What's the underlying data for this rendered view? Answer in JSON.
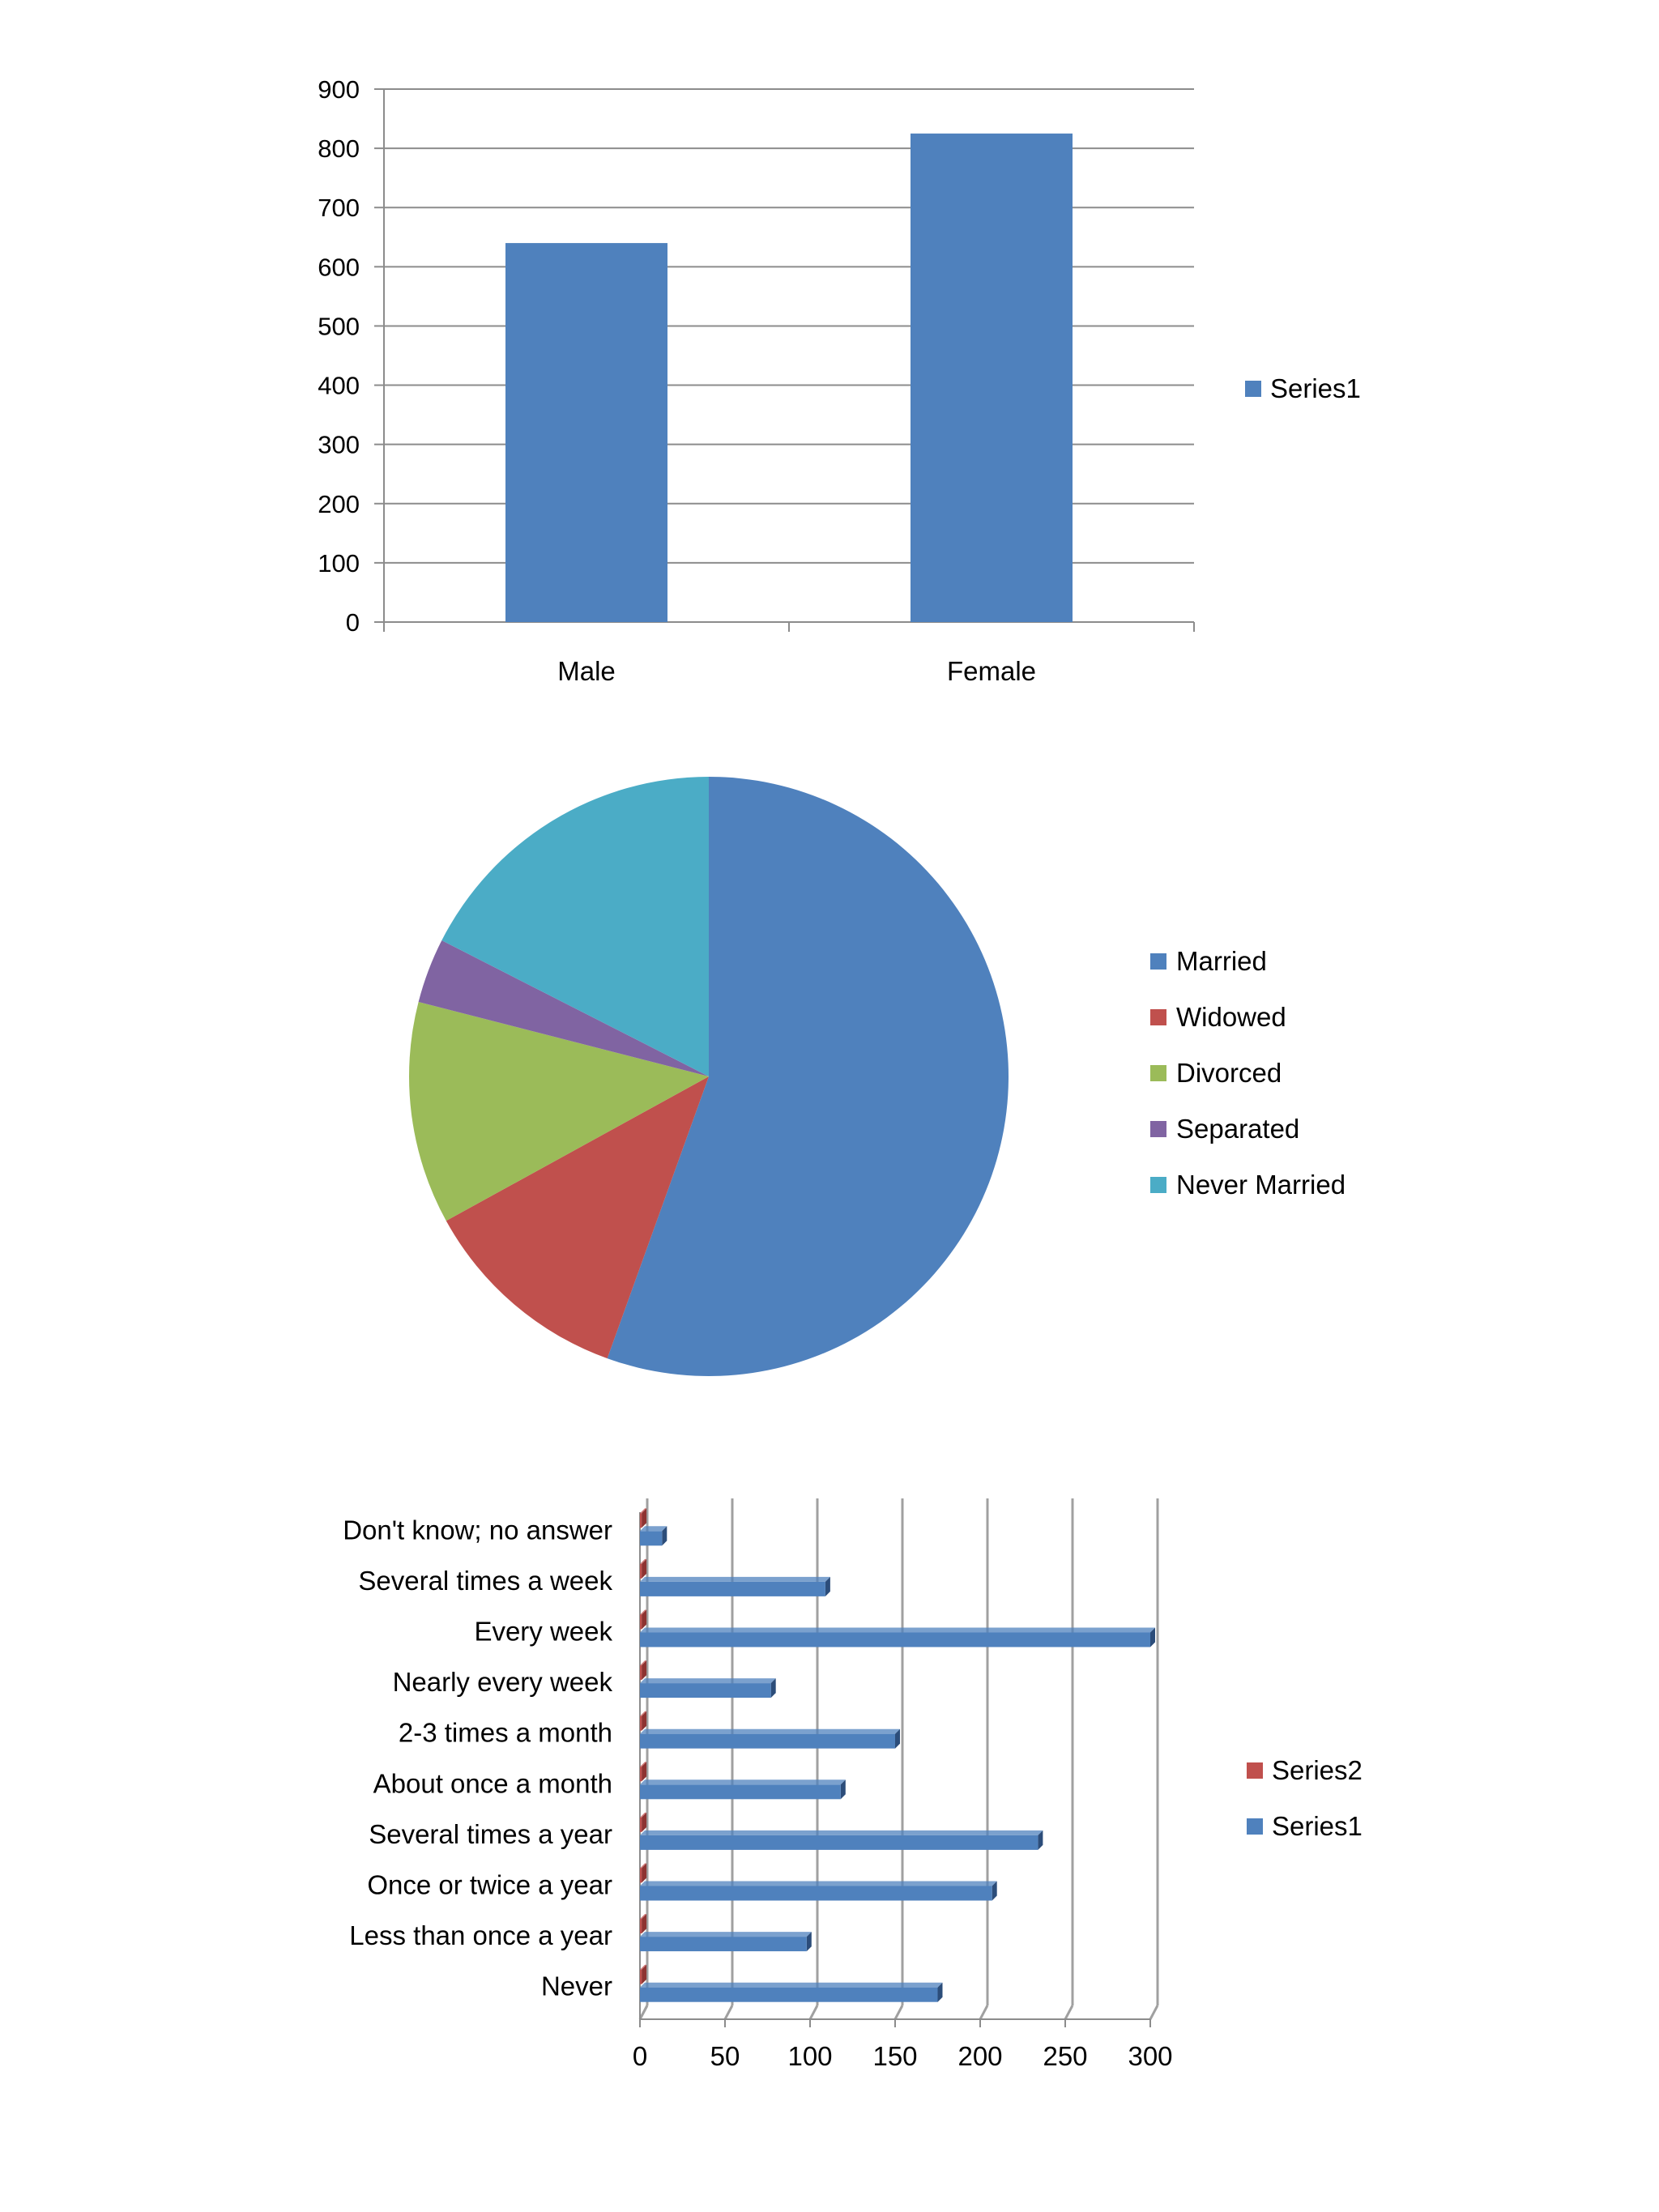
{
  "chart_data": [
    {
      "type": "bar",
      "categories": [
        "Male",
        "Female"
      ],
      "series": [
        {
          "name": "Series1",
          "values": [
            640,
            825
          ]
        }
      ],
      "ylim": [
        0,
        900
      ],
      "yticks": [
        0,
        100,
        200,
        300,
        400,
        500,
        600,
        700,
        800,
        900
      ],
      "grid": true,
      "legend": "right",
      "colors": {
        "Series1": "#4f81bd"
      }
    },
    {
      "type": "pie",
      "categories": [
        "Married",
        "Widowed",
        "Divorced",
        "Separated",
        "Never Married"
      ],
      "values": [
        55.5,
        11.5,
        12.0,
        3.5,
        17.5
      ],
      "legend": "right",
      "colors": [
        "#4f81bd",
        "#c0504d",
        "#9bbb59",
        "#8064a2",
        "#4bacc6"
      ]
    },
    {
      "type": "bar",
      "orientation": "horizontal",
      "categories": [
        "Never",
        "Less than once a year",
        "Once or twice a year",
        "Several times a year",
        "About once a month",
        "2-3 times a month",
        "Nearly every week",
        "Every week",
        "Several times a week",
        "Don't know; no answer"
      ],
      "series": [
        {
          "name": "Series1",
          "values": [
            175,
            98,
            207,
            234,
            118,
            150,
            77,
            300,
            109,
            13
          ]
        },
        {
          "name": "Series2",
          "values": [
            1,
            1,
            1,
            1,
            1,
            1,
            1,
            1,
            1,
            1
          ]
        }
      ],
      "xlim": [
        0,
        300
      ],
      "xticks": [
        0,
        50,
        100,
        150,
        200,
        250,
        300
      ],
      "grid": true,
      "legend": "right",
      "colors": {
        "Series1": "#4f81bd",
        "Series2": "#c0504d"
      }
    }
  ]
}
